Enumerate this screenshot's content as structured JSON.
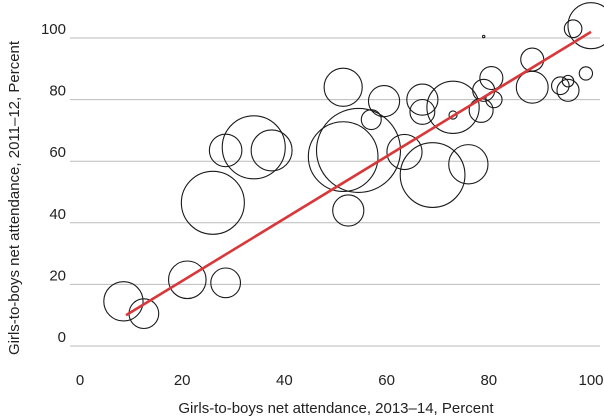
{
  "chart_data": {
    "type": "scatter",
    "xlabel": "Girls-to-boys net attendance, 2013–14, Percent",
    "ylabel": "Girls-to-boys net attendance, 2011–12, Percent",
    "xlim": [
      0,
      100
    ],
    "ylim": [
      0,
      100
    ],
    "xticks": [
      "0",
      "20",
      "40",
      "60",
      "80",
      "100"
    ],
    "yticks": [
      "0",
      "20",
      "40",
      "60",
      "80",
      "100"
    ],
    "grid": "horizontal",
    "colors": {
      "bubble": "#1a1a1a",
      "trend": "#d9383a",
      "grid": "#bbbbbb"
    },
    "points": [
      {
        "x": 8.5,
        "y": 14.5,
        "size": 3.5
      },
      {
        "x": 12.5,
        "y": 10.5,
        "size": 2
      },
      {
        "x": 21,
        "y": 21.5,
        "size": 3.2
      },
      {
        "x": 28.5,
        "y": 20.5,
        "size": 2
      },
      {
        "x": 26,
        "y": 46.5,
        "size": 9
      },
      {
        "x": 28.5,
        "y": 63.5,
        "size": 2.4
      },
      {
        "x": 34,
        "y": 64.5,
        "size": 9
      },
      {
        "x": 37.5,
        "y": 63.5,
        "size": 3.8
      },
      {
        "x": 51.5,
        "y": 84,
        "size": 3.3
      },
      {
        "x": 52.5,
        "y": 44,
        "size": 2.2
      },
      {
        "x": 51.5,
        "y": 61.5,
        "size": 11
      },
      {
        "x": 54.5,
        "y": 63.5,
        "size": 16
      },
      {
        "x": 57,
        "y": 73.5,
        "size": 0.9
      },
      {
        "x": 59.5,
        "y": 79.5,
        "size": 2.2
      },
      {
        "x": 63.5,
        "y": 63,
        "size": 2.8
      },
      {
        "x": 67,
        "y": 80,
        "size": 2.2
      },
      {
        "x": 67,
        "y": 76,
        "size": 1.4
      },
      {
        "x": 69,
        "y": 55.5,
        "size": 9.5
      },
      {
        "x": 73,
        "y": 77.5,
        "size": 6.2
      },
      {
        "x": 73,
        "y": 75,
        "size": 0.15
      },
      {
        "x": 76,
        "y": 59,
        "size": 3.5
      },
      {
        "x": 78.5,
        "y": 76.5,
        "size": 1.3
      },
      {
        "x": 79,
        "y": 83,
        "size": 1.1
      },
      {
        "x": 79,
        "y": 100.5,
        "size": 0.01
      },
      {
        "x": 80.5,
        "y": 87,
        "size": 1.2
      },
      {
        "x": 81,
        "y": 80,
        "size": 0.6
      },
      {
        "x": 88.5,
        "y": 93,
        "size": 1.2
      },
      {
        "x": 88.5,
        "y": 84,
        "size": 2.3
      },
      {
        "x": 94,
        "y": 84.5,
        "size": 0.7
      },
      {
        "x": 95.5,
        "y": 86,
        "size": 0.3
      },
      {
        "x": 95.5,
        "y": 83,
        "size": 1.1
      },
      {
        "x": 99,
        "y": 88.5,
        "size": 0.4
      },
      {
        "x": 96.5,
        "y": 103,
        "size": 0.7
      },
      {
        "x": 100,
        "y": 104,
        "size": 4.8
      }
    ],
    "trendline": {
      "x": [
        9,
        100
      ],
      "y": [
        10,
        102
      ]
    }
  }
}
